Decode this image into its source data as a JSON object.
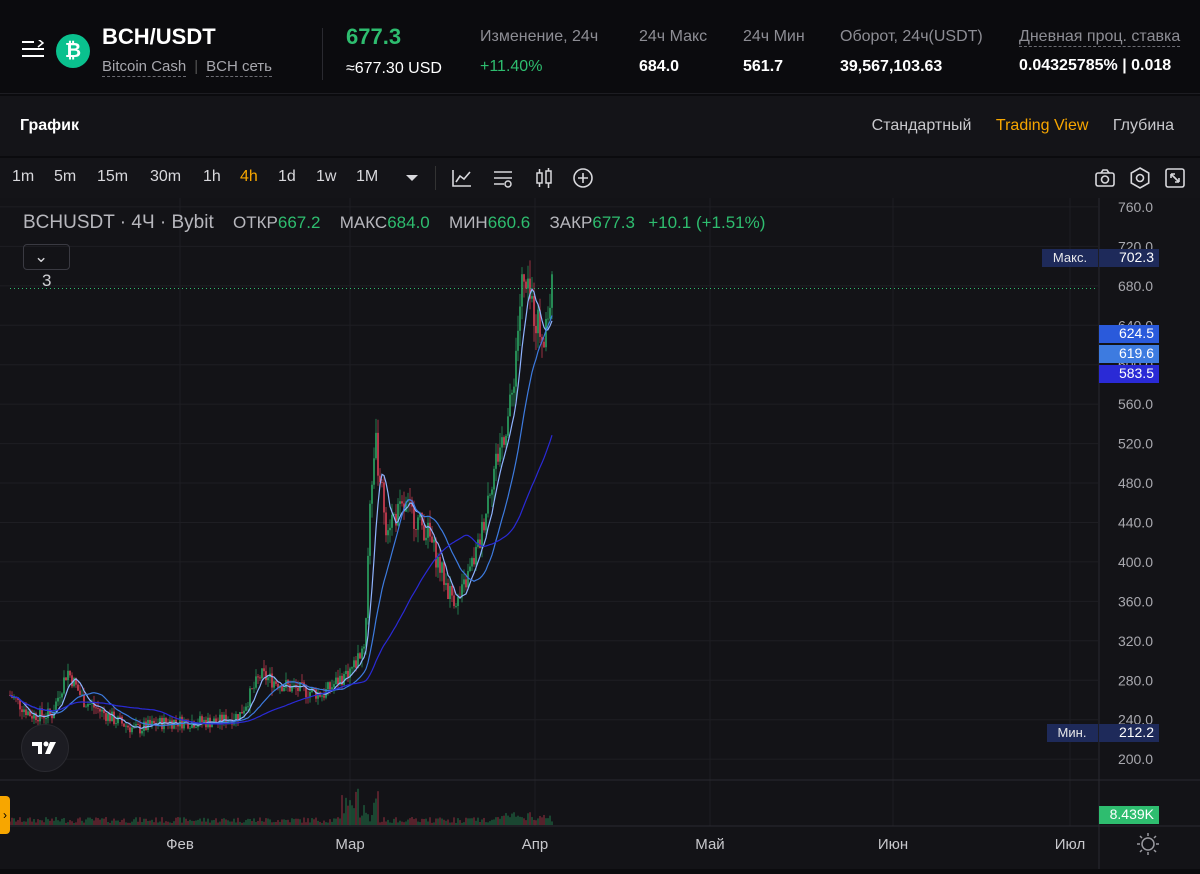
{
  "header": {
    "pair": "BCH/USDT",
    "coin_letter": "₿",
    "coin_name": "Bitcoin Cash",
    "network": "BCH сеть",
    "last_price": "677.3",
    "price_usd": "≈677.30 USD",
    "stats": [
      {
        "label": "Изменение, 24ч",
        "value": "+11.40%",
        "color": "#2ebd6f"
      },
      {
        "label": "24ч Макс",
        "value": "684.0"
      },
      {
        "label": "24ч Мин",
        "value": "561.7"
      },
      {
        "label": "Оборот, 24ч(USDT)",
        "value": "39,567,103.63"
      },
      {
        "label": "Дневная проц. ставка",
        "value": "0.04325785% | 0.018"
      }
    ]
  },
  "chart_header": {
    "title": "График",
    "views": [
      "Стандартный",
      "Trading View",
      "Глубина"
    ],
    "active_view": "Trading View"
  },
  "toolbar": {
    "timeframes": [
      "1m",
      "5m",
      "15m",
      "30m",
      "1h",
      "4h",
      "1d",
      "1w",
      "1M"
    ],
    "active_timeframe": "4h",
    "icons": [
      "chevron-down-icon",
      "indicators-icon",
      "settings-lines-icon",
      "candles-icon",
      "add-icon",
      "camera-icon",
      "gear-icon",
      "fullscreen-icon"
    ]
  },
  "legend": {
    "symbol": "BCHUSDT · 4Ч · Bybit",
    "open_label": "ОТКР",
    "open": "667.2",
    "high_label": "МАКС",
    "high": "684.0",
    "low_label": "МИН",
    "low": "660.6",
    "close_label": "ЗАКР",
    "close": "677.3",
    "change": "+10.1 (+1.51%)",
    "indicators_count": "3"
  },
  "chart_data": {
    "type": "candlestick",
    "symbol": "BCHUSDT",
    "interval": "4Ч",
    "ylim": [
      190,
      765
    ],
    "y_ticks": [
      760.0,
      720.0,
      680.0,
      640.0,
      600.0,
      560.0,
      520.0,
      480.0,
      440.0,
      400.0,
      360.0,
      320.0,
      280.0,
      240.0,
      200.0
    ],
    "x_ticks": [
      "Фев",
      "Мар",
      "Апр",
      "Май",
      "Июн",
      "Июл"
    ],
    "price_path": [
      [
        0,
        265
      ],
      [
        0.02,
        245
      ],
      [
        0.04,
        245
      ],
      [
        0.055,
        290
      ],
      [
        0.07,
        260
      ],
      [
        0.1,
        240
      ],
      [
        0.12,
        230
      ],
      [
        0.15,
        238
      ],
      [
        0.2,
        238
      ],
      [
        0.22,
        245
      ],
      [
        0.24,
        285
      ],
      [
        0.27,
        272
      ],
      [
        0.3,
        266
      ],
      [
        0.33,
        295
      ],
      [
        0.34,
        320
      ],
      [
        0.345,
        470
      ],
      [
        0.35,
        520
      ],
      [
        0.36,
        440
      ],
      [
        0.38,
        455
      ],
      [
        0.4,
        430
      ],
      [
        0.42,
        370
      ],
      [
        0.43,
        360
      ],
      [
        0.45,
        420
      ],
      [
        0.46,
        480
      ],
      [
        0.48,
        560
      ],
      [
        0.49,
        680
      ],
      [
        0.5,
        660
      ],
      [
        0.51,
        630
      ],
      [
        0.52,
        677.3
      ]
    ],
    "volume_label": "8.439K",
    "max_label": "Макс.",
    "max_value": "702.3",
    "min_label": "Мин.",
    "min_value": "212.2",
    "ma_tags": [
      {
        "value": "624.5",
        "color": "#2a5adb"
      },
      {
        "value": "619.6",
        "color": "#3d7be0"
      },
      {
        "value": "583.5",
        "color": "#2a2ad6"
      }
    ],
    "current_price_line": 677.3
  }
}
